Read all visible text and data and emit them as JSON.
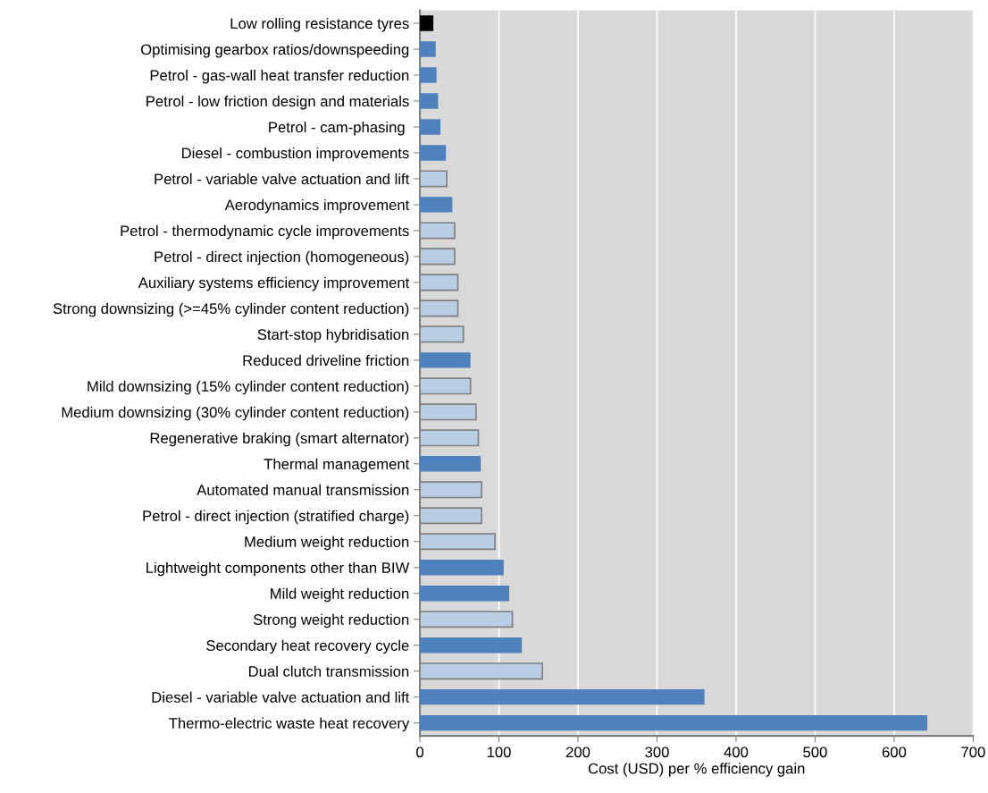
{
  "chart_data": {
    "type": "bar",
    "orientation": "horizontal",
    "xlabel": "Cost (USD) per % efficiency gain",
    "categories": [
      "Low rolling resistance tyres",
      "Optimising gearbox ratios/downspeeding",
      "Petrol - gas-wall heat transfer reduction",
      "Petrol - low friction design and materials",
      "Petrol - cam-phasing ",
      "Diesel - combustion improvements",
      "Petrol - variable valve actuation and lift",
      "Aerodynamics improvement",
      "Petrol - thermodynamic cycle improvements",
      "Petrol - direct injection (homogeneous)",
      "Auxiliary systems efficiency improvement",
      "Strong downsizing (>=45% cylinder content reduction)",
      "Start-stop hybridisation",
      "Reduced driveline friction",
      "Mild downsizing (15% cylinder content reduction)",
      "Medium downsizing (30% cylinder content reduction)",
      "Regenerative braking (smart alternator)",
      "Thermal management",
      "Automated manual transmission",
      "Petrol - direct injection (stratified charge)",
      "Medium weight reduction",
      "Lightweight components other than BIW",
      "Mild weight reduction",
      "Strong weight reduction",
      "Secondary heat recovery cycle",
      "Dual clutch transmission",
      "Diesel - variable valve actuation and lift",
      "Thermo-electric waste heat recovery"
    ],
    "values": [
      17,
      20,
      21,
      23,
      26,
      33,
      34,
      41,
      44,
      44,
      48,
      48,
      55,
      64,
      64,
      71,
      74,
      77,
      78,
      78,
      95,
      106,
      113,
      117,
      129,
      155,
      360,
      642
    ],
    "colors": [
      "#000000",
      "#4f81bd",
      "#4f81bd",
      "#4f81bd",
      "#4f81bd",
      "#4f81bd",
      "#b9cde5",
      "#4f81bd",
      "#b9cde5",
      "#b9cde5",
      "#b9cde5",
      "#b9cde5",
      "#b9cde5",
      "#4f81bd",
      "#b9cde5",
      "#b9cde5",
      "#b9cde5",
      "#4f81bd",
      "#b9cde5",
      "#b9cde5",
      "#b9cde5",
      "#4f81bd",
      "#4f81bd",
      "#b9cde5",
      "#4f81bd",
      "#b9cde5",
      "#4f81bd",
      "#4f81bd"
    ],
    "xlim": [
      0,
      700
    ],
    "xticks": [
      0,
      100,
      200,
      300,
      400,
      500,
      600,
      700
    ],
    "grid": "x"
  }
}
